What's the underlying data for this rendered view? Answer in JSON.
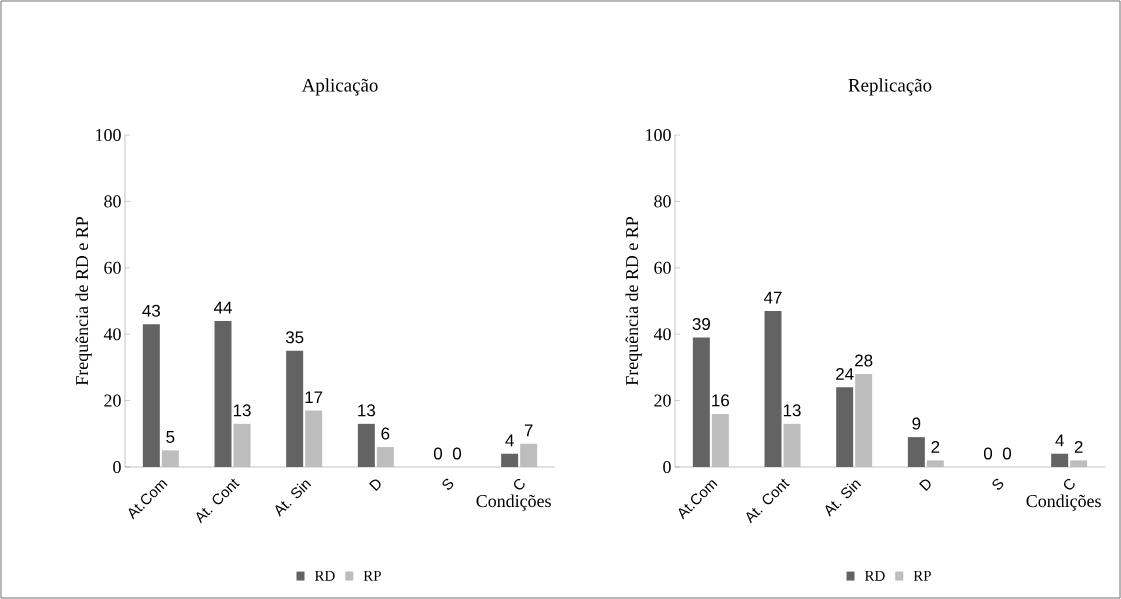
{
  "chart_data": [
    {
      "type": "bar",
      "title": "Aplicação",
      "ylabel": "Frequência de RD e RP",
      "xlabel": "Condições",
      "categories": [
        "At.Com",
        "At. Cont",
        "At. Sin",
        "D",
        "S",
        "C"
      ],
      "series": [
        {
          "name": "RD",
          "color": "#636363",
          "values": [
            43,
            44,
            35,
            13,
            0,
            4
          ]
        },
        {
          "name": "RP",
          "color": "#bdbdbd",
          "values": [
            5,
            13,
            17,
            6,
            0,
            7
          ]
        }
      ],
      "ylim": [
        0,
        100
      ],
      "yticks": [
        0,
        20,
        40,
        60,
        80,
        100
      ],
      "data_labels": true,
      "legend": "bottom",
      "grid": false
    },
    {
      "type": "bar",
      "title": "Replicação",
      "ylabel": "Frequência de RD e RP",
      "xlabel": "Condições",
      "categories": [
        "At.Com",
        "At. Cont",
        "At. Sin",
        "D",
        "S",
        "C"
      ],
      "series": [
        {
          "name": "RD",
          "color": "#636363",
          "values": [
            39,
            47,
            24,
            9,
            0,
            4
          ]
        },
        {
          "name": "RP",
          "color": "#bdbdbd",
          "values": [
            16,
            13,
            28,
            2,
            0,
            2
          ]
        }
      ],
      "ylim": [
        0,
        100
      ],
      "yticks": [
        0,
        20,
        40,
        60,
        80,
        100
      ],
      "data_labels": true,
      "legend": "bottom",
      "grid": false
    }
  ]
}
